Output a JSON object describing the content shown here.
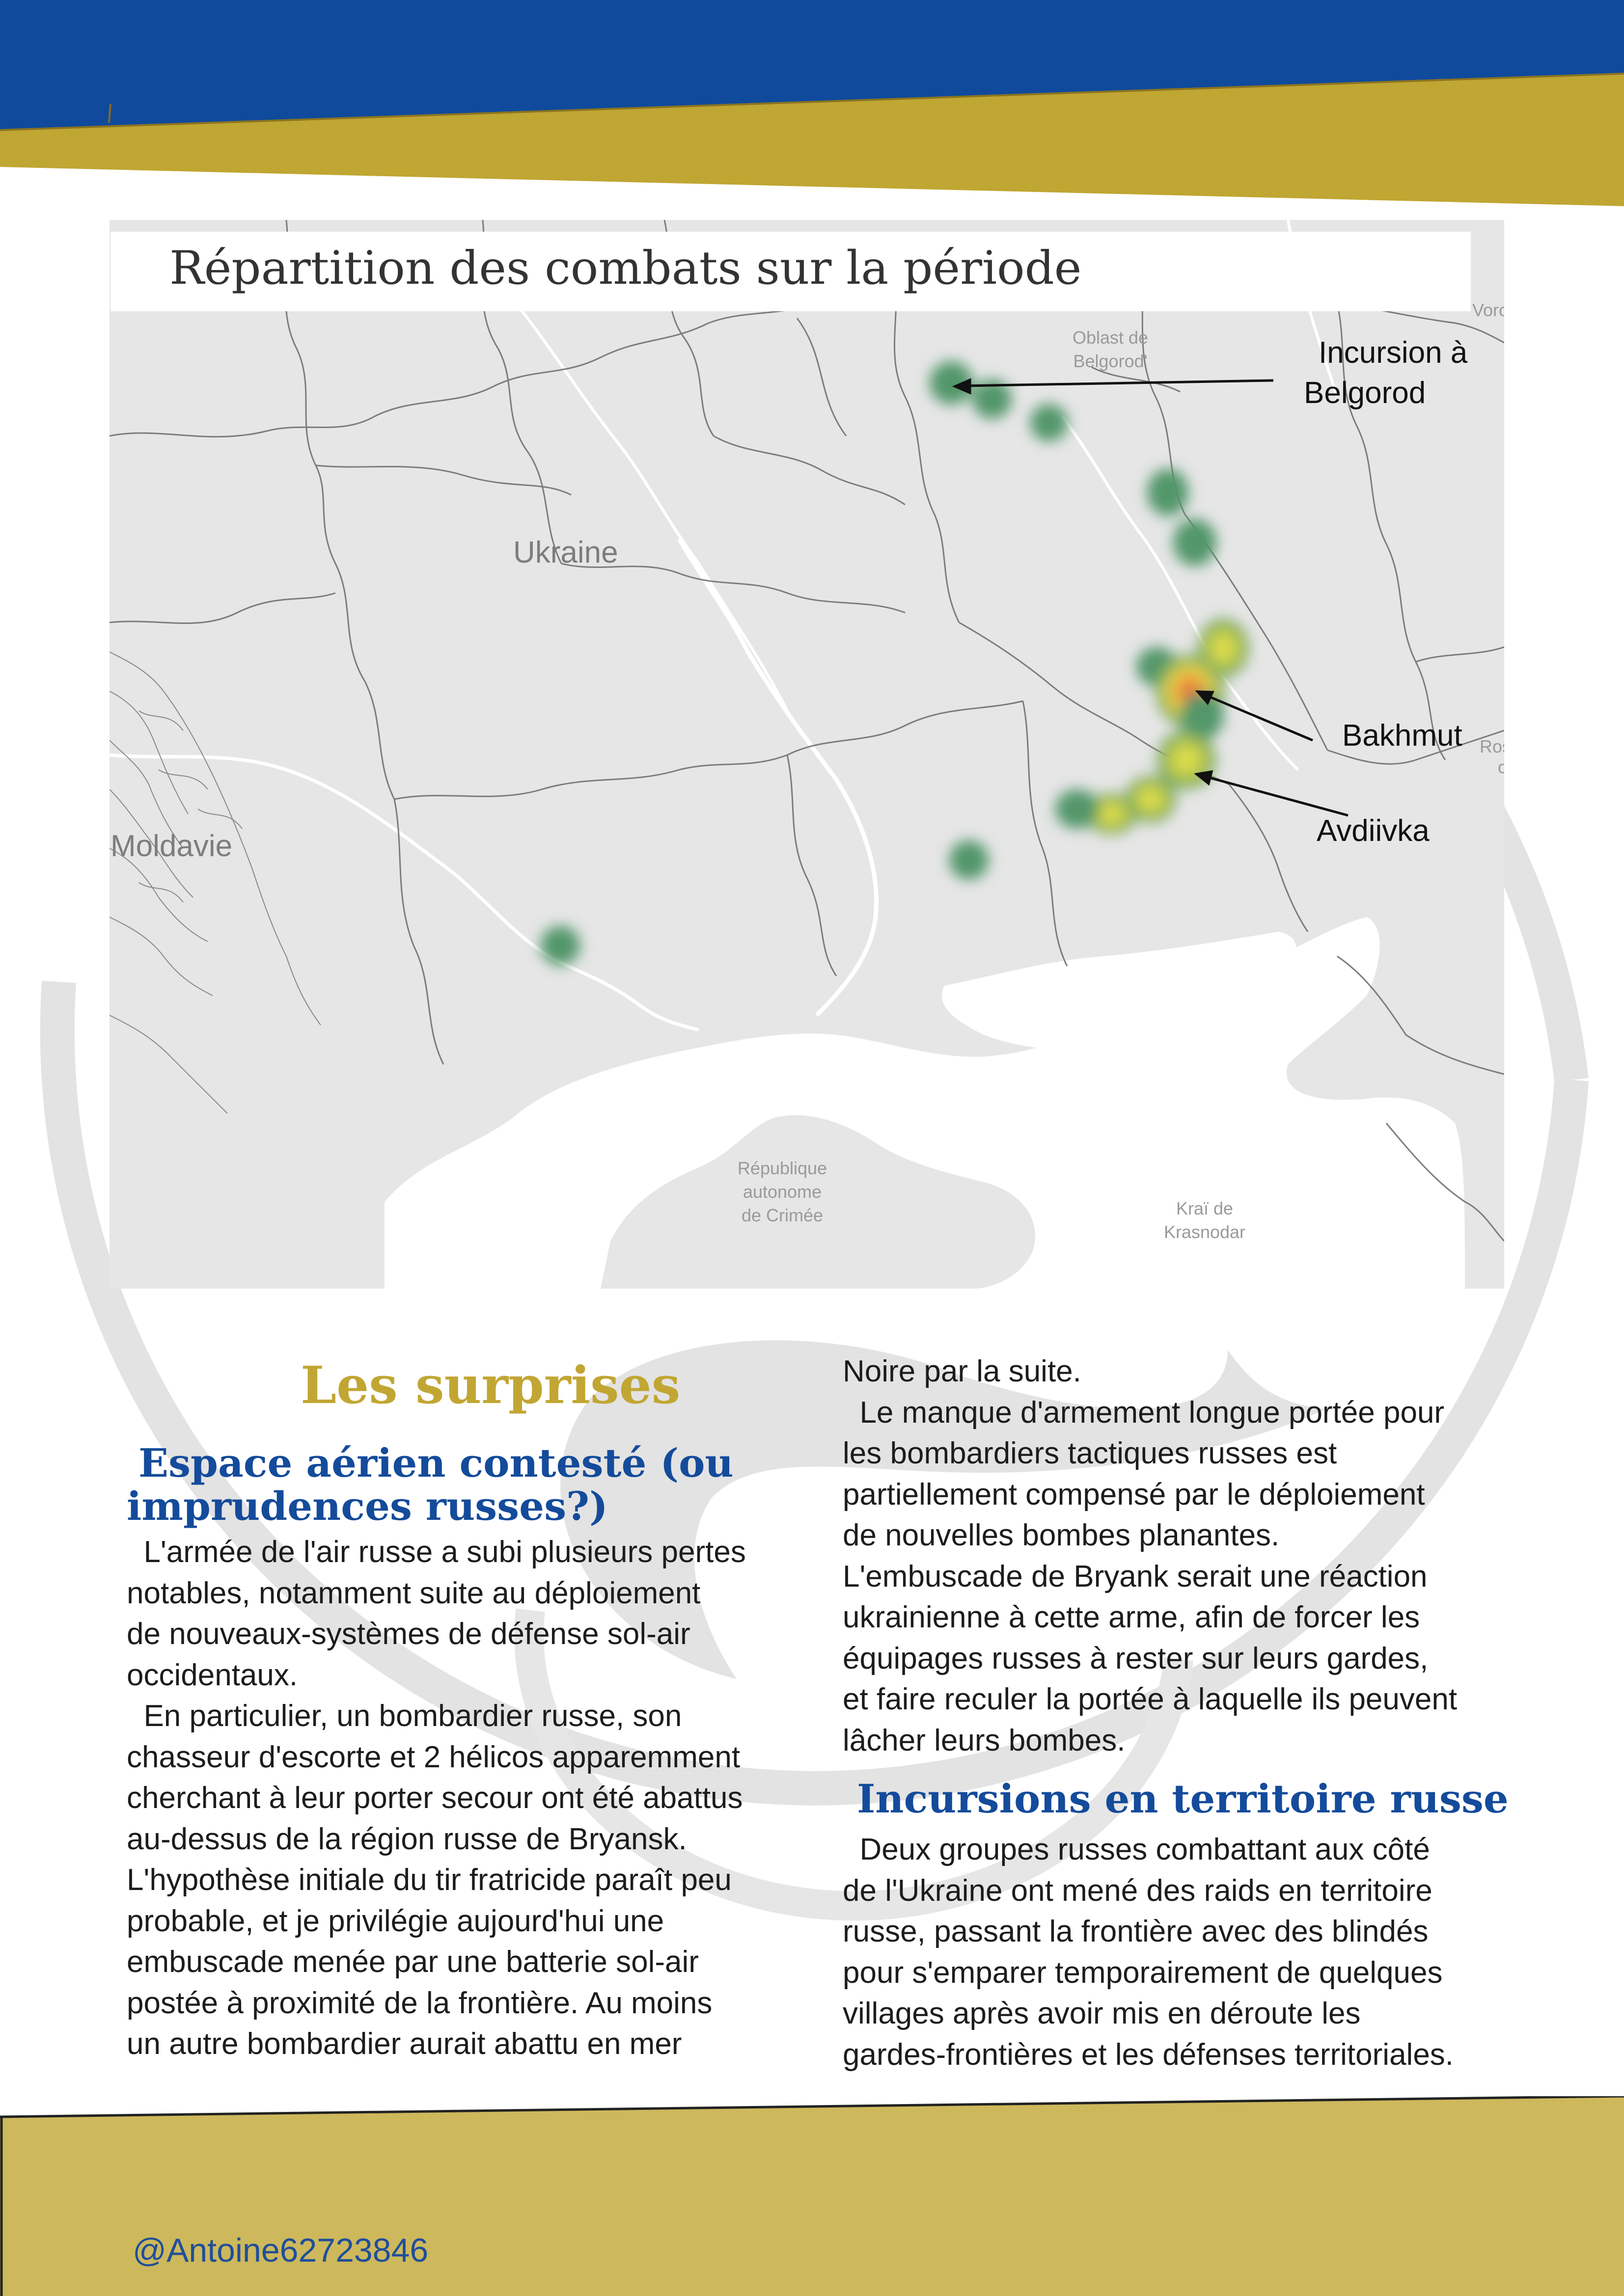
{
  "map": {
    "title": "Répartition des combats sur la période",
    "labels": {
      "ukraine": "Ukraine",
      "moldavie": "Moldavie",
      "belgorod_line1": "Oblast de",
      "belgorod_line2": "Belgorod'",
      "crimee_line1": "République",
      "crimee_line2": "autonome",
      "crimee_line3": "de Crimée",
      "krasnodar_line1": "Kraï de",
      "krasnodar_line2": "Krasnodar",
      "voronej": "Voronej",
      "rostov_line1": "Rosto",
      "rostov_line2": "ob"
    },
    "annotations": {
      "belgorod_line1": "Incursion à",
      "belgorod_line2": "Belgorod",
      "bakhmut": "Bakhmut",
      "avdiivka": "Avdiivka"
    },
    "colors": {
      "low": "#4e9a6e",
      "mid": "#e8d64a",
      "high": "#e2553a"
    }
  },
  "section": {
    "heading": "Les surprises",
    "sub1_line1": "Espace aérien contesté (ou",
    "sub1_line2": "imprudences russes?)",
    "col1": [
      "  L'armée de l'air russe a subi plusieurs pertes",
      "notables, notamment suite au déploiement",
      "de nouveaux-systèmes de défense sol-air",
      "occidentaux.",
      "  En particulier, un bombardier russe, son",
      "chasseur d'escorte et 2 hélicos apparemment",
      "cherchant à leur porter secour ont été abattus",
      "au-dessus de la région russe de Bryansk.",
      "L'hypothèse initiale du tir fratricide paraît peu",
      "probable, et je privilégie aujourd'hui une",
      "embuscade menée par une batterie sol-air",
      "postée à proximité de la frontière. Au moins",
      "un autre bombardier aurait abattu en mer"
    ],
    "col2": [
      "Noire par la suite.",
      "  Le manque d'armement longue portée pour",
      "les bombardiers tactiques russes est",
      "partiellement compensé par le déploiement",
      "de nouvelles bombes planantes.",
      "L'embuscade de Bryank serait une réaction",
      "ukrainienne à cette arme, afin de forcer les",
      "équipages russes à rester sur leurs gardes,",
      "et faire reculer la portée à laquelle ils peuvent",
      "lâcher leurs bombes."
    ],
    "sub2": "Incursions en territoire russe",
    "col2b": [
      "  Deux groupes russes combattant aux côté",
      "de l'Ukraine ont mené des raids en territoire",
      "russe, passant la frontière avec des blindés",
      "pour s'emparer temporairement de quelques",
      "villages après avoir mis en déroute les",
      "gardes-frontières et les défenses territoriales."
    ]
  },
  "footer": {
    "handle": "@Antoine62723846"
  },
  "colors": {
    "header_blue": "#0f4a9c",
    "header_gold": "#c0a632",
    "footer_gold": "#cdb85c",
    "heading_gold": "#c2a633",
    "heading_blue": "#144b9b"
  }
}
